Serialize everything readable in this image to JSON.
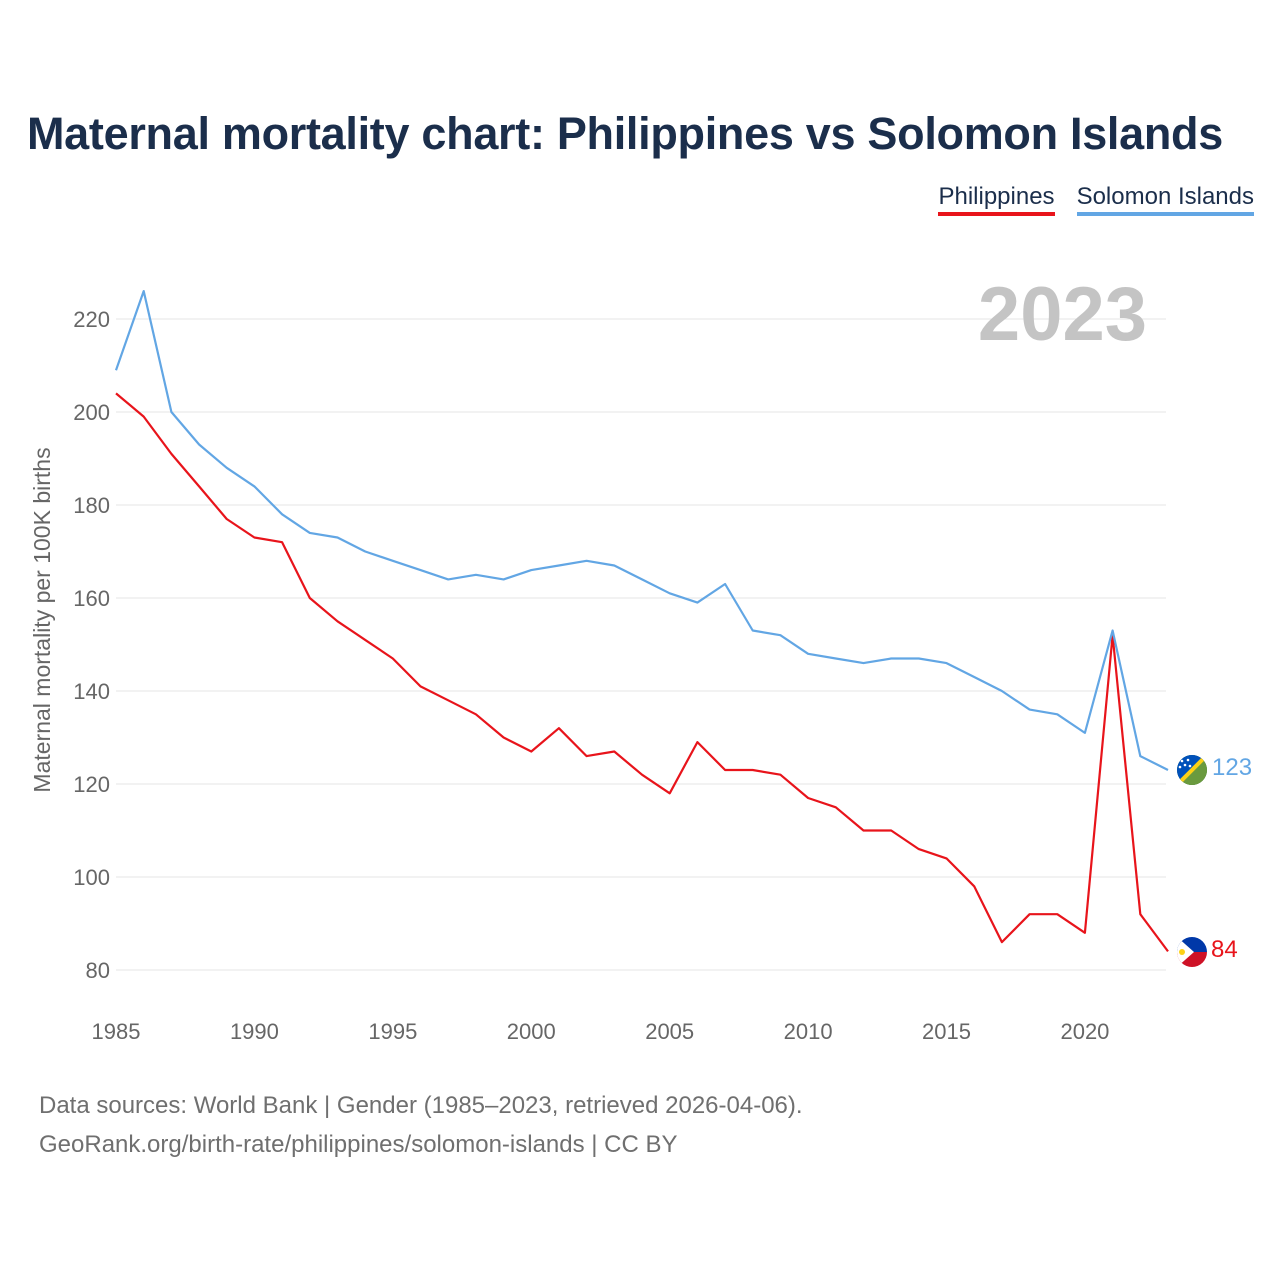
{
  "header": {
    "title": "Maternal mortality chart: Philippines vs Solomon Islands"
  },
  "legend": {
    "items": [
      "Philippines",
      "Solomon Islands"
    ]
  },
  "footer": {
    "line1": "Data sources: World Bank | Gender (1985–2023, retrieved 2026-04-06).",
    "line2": "GeoRank.org/birth-rate/philippines/solomon-islands | CC BY"
  },
  "chart_data": {
    "type": "line",
    "title": "Maternal mortality chart: Philippines vs Solomon Islands",
    "ylabel": "Maternal mortality per 100K births",
    "xlabel": "",
    "year_label": "2023",
    "xlim": [
      1985,
      2023
    ],
    "ylim": [
      80,
      220
    ],
    "x_ticks": [
      1985,
      1990,
      1995,
      2000,
      2005,
      2010,
      2015,
      2020
    ],
    "y_ticks": [
      80,
      100,
      120,
      140,
      160,
      180,
      200,
      220
    ],
    "grid": true,
    "legend_position": "top-right",
    "x": [
      1985,
      1986,
      1987,
      1988,
      1989,
      1990,
      1991,
      1992,
      1993,
      1994,
      1995,
      1996,
      1997,
      1998,
      1999,
      2000,
      2001,
      2002,
      2003,
      2004,
      2005,
      2006,
      2007,
      2008,
      2009,
      2010,
      2011,
      2012,
      2013,
      2014,
      2015,
      2016,
      2017,
      2018,
      2019,
      2020,
      2021,
      2022,
      2023
    ],
    "series": [
      {
        "name": "Philippines",
        "color": "#e8141b",
        "end_label": "84",
        "flag_icon": "philippines-flag-icon",
        "values": [
          204,
          199,
          191,
          184,
          177,
          173,
          172,
          160,
          155,
          151,
          147,
          141,
          138,
          135,
          130,
          127,
          132,
          126,
          127,
          122,
          118,
          129,
          123,
          123,
          122,
          117,
          115,
          110,
          110,
          106,
          104,
          98,
          86,
          92,
          92,
          88,
          152,
          92,
          84
        ]
      },
      {
        "name": "Solomon Islands",
        "color": "#62a6e4",
        "end_label": "123",
        "flag_icon": "solomon-islands-flag-icon",
        "values": [
          209,
          226,
          200,
          193,
          188,
          184,
          178,
          174,
          173,
          170,
          168,
          166,
          164,
          165,
          164,
          166,
          167,
          168,
          167,
          164,
          161,
          159,
          163,
          153,
          152,
          148,
          147,
          146,
          147,
          147,
          146,
          143,
          140,
          136,
          135,
          131,
          153,
          126,
          123
        ]
      }
    ]
  }
}
